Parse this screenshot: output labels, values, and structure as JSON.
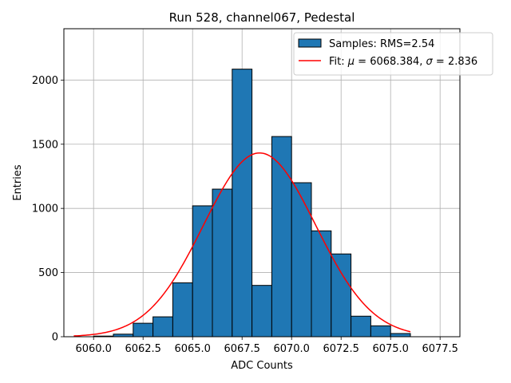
{
  "chart_data": {
    "type": "bar",
    "title": "Run 528, channel067, Pedestal",
    "xlabel": "ADC Counts",
    "ylabel": "Entries",
    "xlim": [
      6058.5,
      6078.5
    ],
    "ylim": [
      0,
      2400
    ],
    "xticks": [
      6060.0,
      6062.5,
      6065.0,
      6067.5,
      6070.0,
      6072.5,
      6075.0,
      6077.5
    ],
    "xtick_labels": [
      "6060.0",
      "6062.5",
      "6065.0",
      "6067.5",
      "6070.0",
      "6072.5",
      "6075.0",
      "6077.5"
    ],
    "yticks": [
      0,
      500,
      1000,
      1500,
      2000
    ],
    "ytick_labels": [
      "0",
      "500",
      "1000",
      "1500",
      "2000"
    ],
    "grid": true,
    "legend_position": "top-right",
    "histogram": {
      "name": "Samples: RMS=2.54",
      "color": "#1f77b4",
      "edge_color": "#000000",
      "bin_edges": [
        6060,
        6061,
        6062,
        6063,
        6064,
        6065,
        6066,
        6067,
        6068,
        6069,
        6070,
        6071,
        6072,
        6073,
        6074,
        6075,
        6076
      ],
      "counts": [
        5,
        20,
        105,
        155,
        420,
        1020,
        1150,
        2085,
        400,
        1560,
        1200,
        825,
        645,
        160,
        85,
        25
      ]
    },
    "fit": {
      "name_prefix": "Fit: ",
      "mu_symbol": "μ",
      "mu_value": "6068.384",
      "sigma_symbol": "σ",
      "sigma_value": "2.836",
      "color": "#ff0000",
      "mu": 6068.384,
      "sigma": 2.836,
      "amplitude": 1432,
      "x_range": [
        6059,
        6076
      ]
    }
  }
}
